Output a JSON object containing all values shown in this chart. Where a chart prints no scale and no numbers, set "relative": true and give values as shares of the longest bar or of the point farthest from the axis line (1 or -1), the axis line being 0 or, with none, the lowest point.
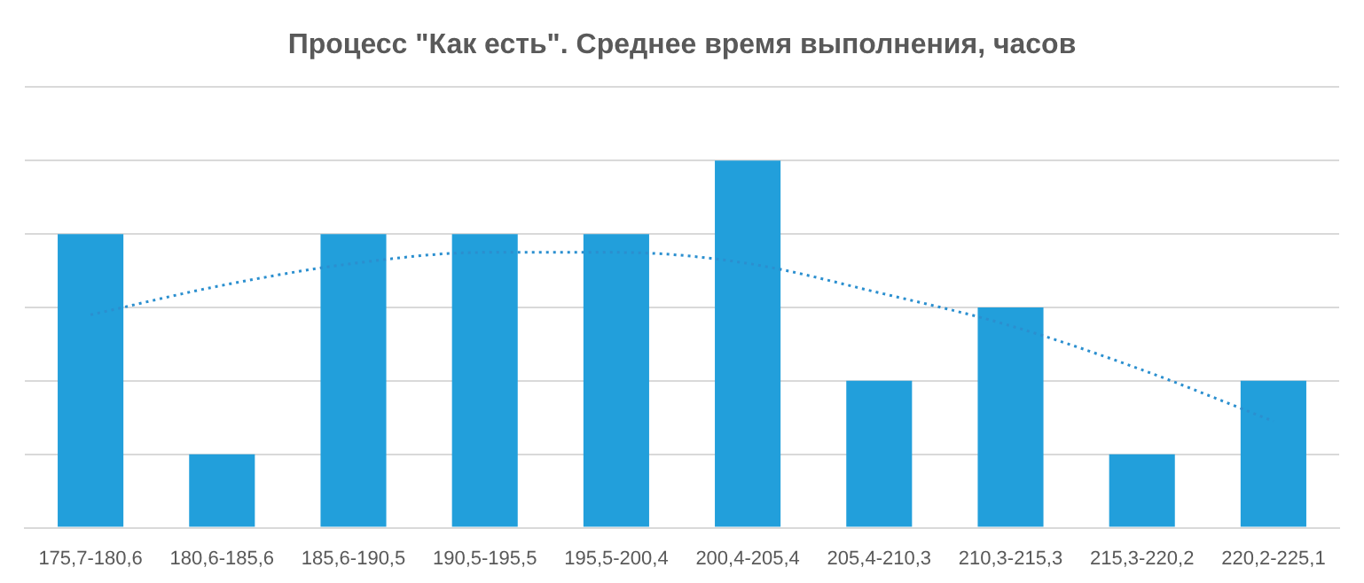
{
  "chart_data": {
    "type": "bar",
    "title": "Процесс \"Как есть\". Среднее время выполнения, часов",
    "relative": true,
    "grid": "y",
    "legend": false,
    "categories": [
      "175,7-180,6",
      "180,6-185,6",
      "185,6-190,5",
      "190,5-195,5",
      "195,5-200,4",
      "200,4-205,4",
      "205,4-210,3",
      "210,3-215,3",
      "215,3-220,2",
      "220,2-225,1"
    ],
    "series": [
      {
        "color": "#229fdb",
        "values": [
          0.8,
          0.2,
          0.8,
          0.8,
          0.8,
          1,
          0.4,
          0.6,
          0.2,
          0.4
        ]
      },
      {
        "type": "line",
        "color": "#2b8fcf",
        "line_style": "dotted",
        "marker": "none",
        "values": [
          0.58,
          0.66,
          0.72,
          0.75,
          0.75,
          0.72,
          0.64,
          0.55,
          0.43,
          0.29
        ]
      }
    ]
  }
}
